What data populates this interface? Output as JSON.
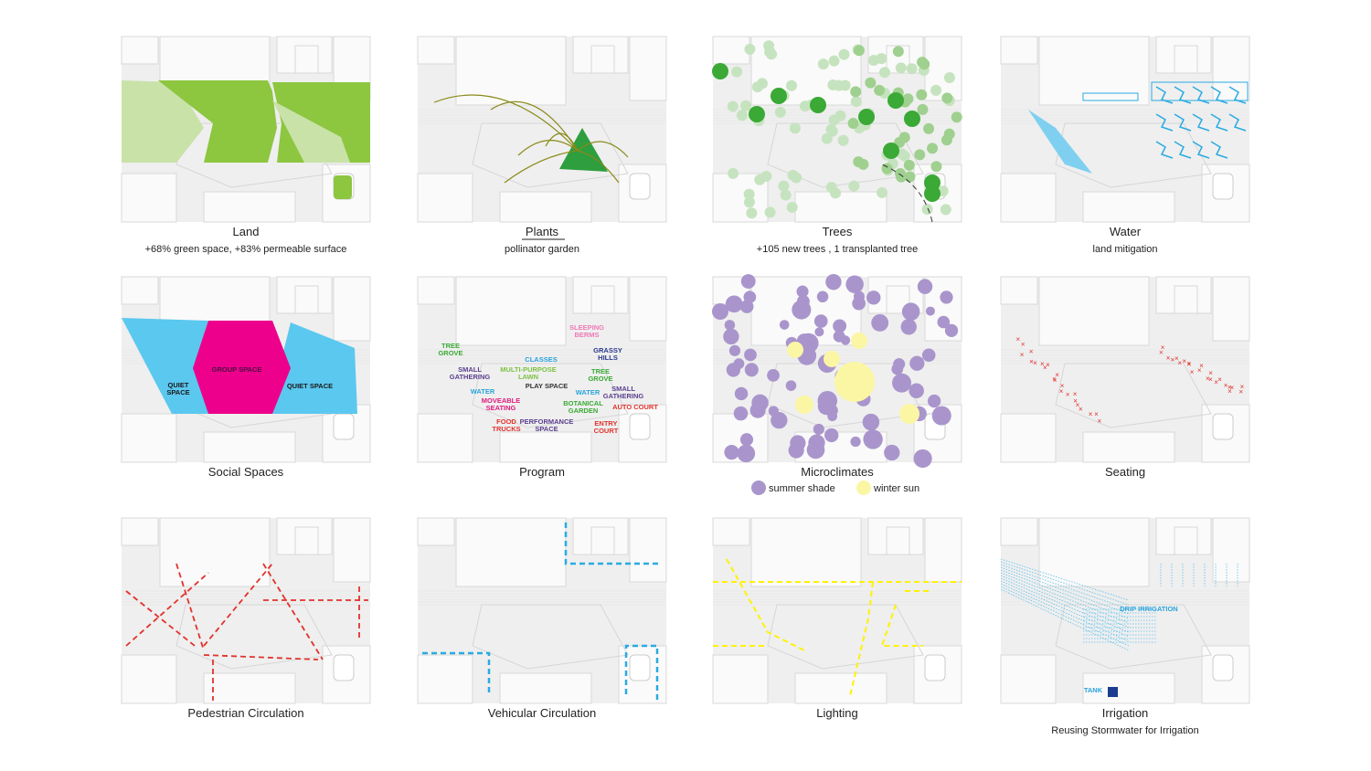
{
  "panels": [
    {
      "title": "Land",
      "subtitle": "+68% green space, +83% permeable surface"
    },
    {
      "title": "Plants",
      "subtitle": "pollinator garden"
    },
    {
      "title": "Trees",
      "subtitle": "+105 new trees , 1 transplanted tree"
    },
    {
      "title": "Water",
      "subtitle": "land mitigation"
    },
    {
      "title": "Social Spaces",
      "labels": [
        {
          "lines": [
            "GROUP SPACE"
          ],
          "color": "#4a1040"
        },
        {
          "lines": [
            "QUIET",
            "SPACE"
          ],
          "color": "#1a1a1a"
        },
        {
          "lines": [
            "QUIET SPACE"
          ],
          "color": "#1a1a1a"
        }
      ]
    },
    {
      "title": "Program",
      "labels": [
        {
          "lines": [
            "TREE",
            "GROVE"
          ],
          "color": "#3aaa35"
        },
        {
          "lines": [
            "SMALL",
            "GATHERING"
          ],
          "color": "#5b3f8f"
        },
        {
          "lines": [
            "WATER"
          ],
          "color": "#29a3dc"
        },
        {
          "lines": [
            "MOVEABLE",
            "SEATING"
          ],
          "color": "#e0197d"
        },
        {
          "lines": [
            "FOOD",
            "TRUCKS"
          ],
          "color": "#e2322c"
        },
        {
          "lines": [
            "CLASSES"
          ],
          "color": "#29a3dc"
        },
        {
          "lines": [
            "MULTI-PURPOSE",
            "LAWN"
          ],
          "color": "#7dc242"
        },
        {
          "lines": [
            "PLAY SPACE"
          ],
          "color": "#333333"
        },
        {
          "lines": [
            "PERFORMANCE",
            "SPACE"
          ],
          "color": "#5b3f8f"
        },
        {
          "lines": [
            "SLEEPING",
            "BERMS"
          ],
          "color": "#ee7ab5"
        },
        {
          "lines": [
            "GRASSY",
            "HILLS"
          ],
          "color": "#2b3a8c"
        },
        {
          "lines": [
            "TREE",
            "GROVE"
          ],
          "color": "#3aaa35"
        },
        {
          "lines": [
            "WATER"
          ],
          "color": "#29a3dc"
        },
        {
          "lines": [
            "SMALL",
            "GATHERING"
          ],
          "color": "#5b3f8f"
        },
        {
          "lines": [
            "BOTANICAL",
            "GARDEN"
          ],
          "color": "#3aaa35"
        },
        {
          "lines": [
            "AUTO COURT"
          ],
          "color": "#e2322c"
        },
        {
          "lines": [
            "ENTRY",
            "COURT"
          ],
          "color": "#e2322c"
        }
      ]
    },
    {
      "title": "Microclimates",
      "legend": [
        {
          "name": "summer shade",
          "color": "#a995cc"
        },
        {
          "name": "winter sun",
          "color": "#fbf6a4"
        }
      ]
    },
    {
      "title": "Seating"
    },
    {
      "title": "Pedestrian Circulation"
    },
    {
      "title": "Vehicular Circulation"
    },
    {
      "title": "Lighting"
    },
    {
      "title": "Irrigation",
      "subtitle": "Reusing Stormwater for Irrigation",
      "labels": [
        {
          "lines": [
            "DRIP IRRIGATION"
          ],
          "color": "#29a3dc"
        },
        {
          "lines": [
            "TANK"
          ],
          "color": "#29a3dc"
        }
      ]
    }
  ]
}
